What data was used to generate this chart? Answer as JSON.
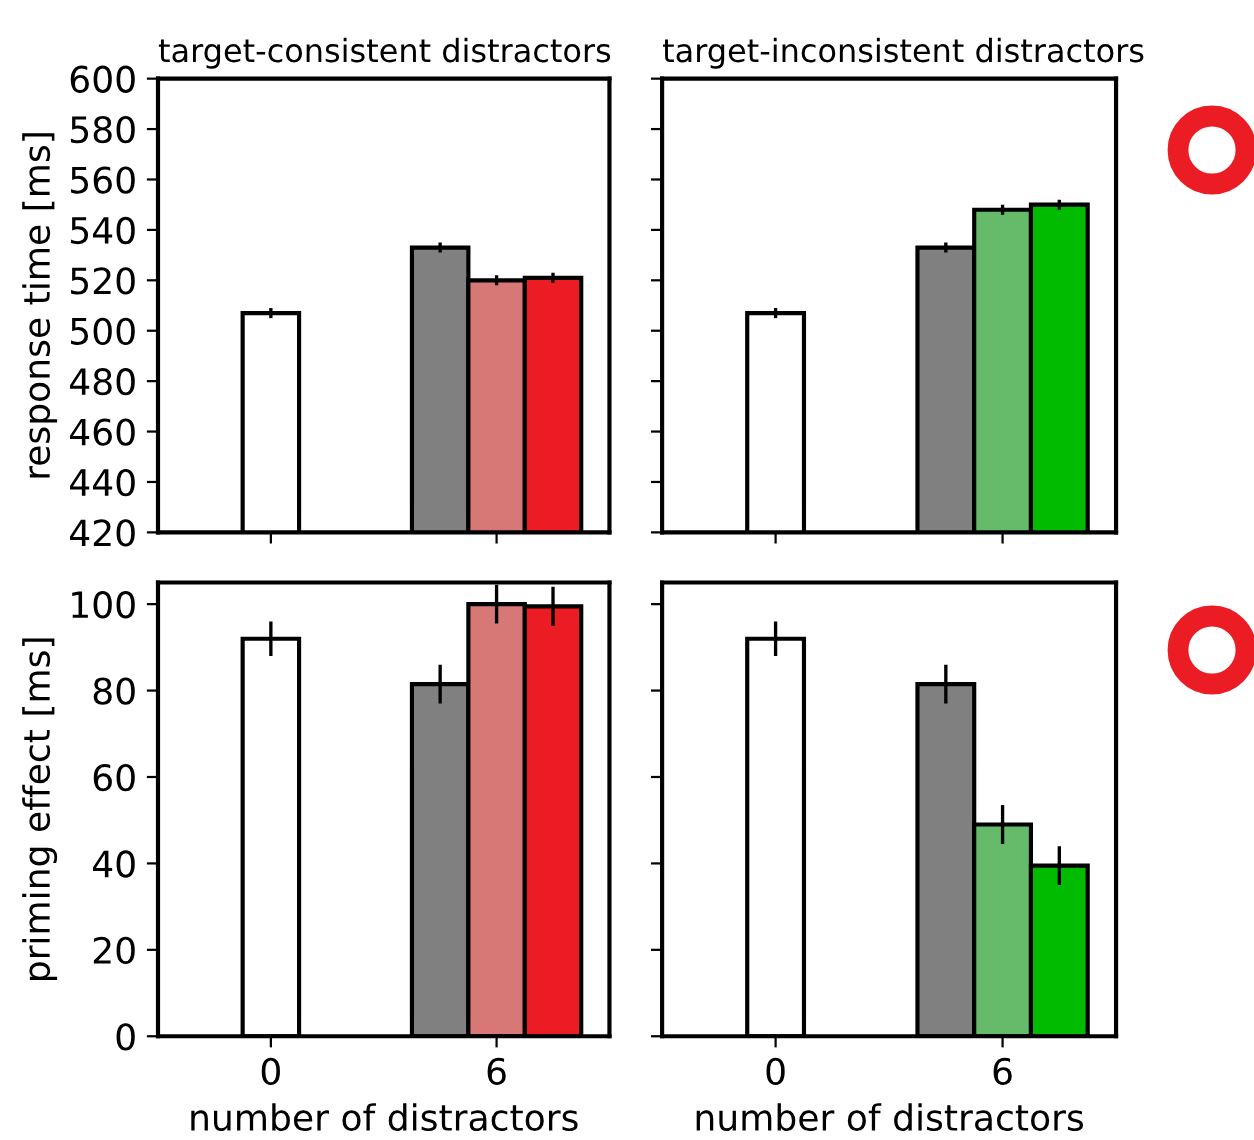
{
  "chart_data": [
    {
      "type": "bar",
      "title": "target-consistent distractors",
      "ylabel": "response time [ms]",
      "xlim": [
        -3,
        9
      ],
      "xticks": [
        0,
        6
      ],
      "ylim": [
        420,
        600
      ],
      "yticks": [
        420,
        440,
        460,
        480,
        500,
        520,
        540,
        560,
        580,
        600
      ],
      "tick_labels": "y",
      "grid": false,
      "legend": false,
      "series": [
        {
          "color": "#ffffff",
          "x": [
            0
          ],
          "values": [
            507
          ],
          "errors": [
            2
          ]
        },
        {
          "color": "#808080",
          "x": [
            4.5
          ],
          "values": [
            533
          ],
          "errors": [
            2
          ]
        },
        {
          "color": "#d87876",
          "x": [
            6
          ],
          "values": [
            520
          ],
          "errors": [
            2
          ]
        },
        {
          "color": "#ec1c24",
          "x": [
            7.5
          ],
          "values": [
            521
          ],
          "errors": [
            2
          ]
        }
      ]
    },
    {
      "type": "bar",
      "title": "target-inconsistent distractors",
      "xlim": [
        -3,
        9
      ],
      "xticks": [
        0,
        6
      ],
      "ylim": [
        420,
        600
      ],
      "yticks": [
        420,
        440,
        460,
        480,
        500,
        520,
        540,
        560,
        580,
        600
      ],
      "tick_labels": false,
      "grid": false,
      "legend": false,
      "series": [
        {
          "color": "#ffffff",
          "x": [
            0
          ],
          "values": [
            507
          ],
          "errors": [
            2
          ]
        },
        {
          "color": "#808080",
          "x": [
            4.5
          ],
          "values": [
            533
          ],
          "errors": [
            2
          ]
        },
        {
          "color": "#66bb6a",
          "x": [
            6
          ],
          "values": [
            548
          ],
          "errors": [
            2
          ]
        },
        {
          "color": "#00bb00",
          "x": [
            7.5
          ],
          "values": [
            550
          ],
          "errors": [
            2
          ]
        }
      ]
    },
    {
      "type": "bar",
      "xlabel": "number of distractors",
      "ylabel": "priming effect [ms]",
      "xlim": [
        -3,
        9
      ],
      "xticks": [
        0,
        6
      ],
      "ylim": [
        0,
        105
      ],
      "yticks": [
        0,
        20,
        40,
        60,
        80,
        100
      ],
      "grid": false,
      "legend": false,
      "series": [
        {
          "color": "#ffffff",
          "x": [
            0
          ],
          "values": [
            92
          ],
          "errors": [
            4
          ]
        },
        {
          "color": "#808080",
          "x": [
            4.5
          ],
          "values": [
            81.5
          ],
          "errors": [
            4.5
          ]
        },
        {
          "color": "#d87876",
          "x": [
            6
          ],
          "values": [
            100
          ],
          "errors": [
            4.5
          ]
        },
        {
          "color": "#ec1c24",
          "x": [
            7.5
          ],
          "values": [
            99.5
          ],
          "errors": [
            4.5
          ]
        }
      ]
    },
    {
      "type": "bar",
      "xlabel": "number of distractors",
      "xlim": [
        -3,
        9
      ],
      "xticks": [
        0,
        6
      ],
      "ylim": [
        0,
        105
      ],
      "yticks": [
        0,
        20,
        40,
        60,
        80,
        100
      ],
      "tick_labels": "x",
      "grid": false,
      "legend": false,
      "series": [
        {
          "color": "#ffffff",
          "x": [
            0
          ],
          "values": [
            92
          ],
          "errors": [
            4
          ]
        },
        {
          "color": "#808080",
          "x": [
            4.5
          ],
          "values": [
            81.5
          ],
          "errors": [
            4.5
          ]
        },
        {
          "color": "#66bb6a",
          "x": [
            6
          ],
          "values": [
            49
          ],
          "errors": [
            4.5
          ]
        },
        {
          "color": "#00bb00",
          "x": [
            7.5
          ],
          "values": [
            39.5
          ],
          "errors": [
            4.5
          ]
        }
      ]
    }
  ]
}
